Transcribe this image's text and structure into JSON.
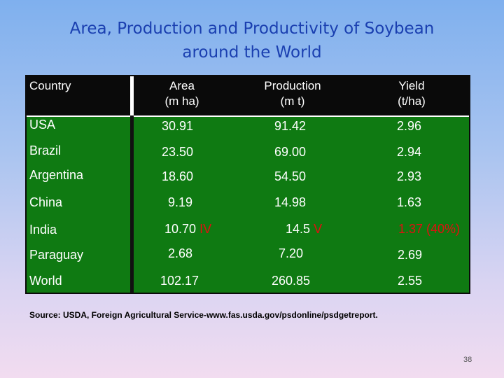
{
  "title": {
    "line1": "Area, Production and Productivity of Soybean",
    "line2": "around the  World"
  },
  "table": {
    "headers": {
      "country": "Country",
      "area_line1": "Area",
      "area_line2": "(m ha)",
      "production_line1": "Production",
      "production_line2": "(m t)",
      "yield_line1": "Yield",
      "yield_line2": "(t/ha)"
    },
    "rows": [
      {
        "country": "USA",
        "area": "30.91",
        "area_mark": "",
        "production": "91.42",
        "production_mark": "",
        "yield": "2.96",
        "yield_mark": ""
      },
      {
        "country": "Brazil",
        "area": "23.50",
        "area_mark": "",
        "production": "69.00",
        "production_mark": "",
        "yield": "2.94",
        "yield_mark": ""
      },
      {
        "country": "Argentina",
        "area": "18.60",
        "area_mark": "",
        "production": "54.50",
        "production_mark": "",
        "yield": "2.93",
        "yield_mark": ""
      },
      {
        "country": "China",
        "area": "9.19",
        "area_mark": "",
        "production": "14.98",
        "production_mark": "",
        "yield": "1.63",
        "yield_mark": ""
      },
      {
        "country": "India",
        "area": "10.70",
        "area_mark": "IV",
        "production": "14.5",
        "production_mark": "V",
        "yield": "",
        "yield_mark": "1.37 (40%)"
      },
      {
        "country": "Paraguay",
        "area": "2.68",
        "area_mark": "",
        "production": "7.20",
        "production_mark": "",
        "yield": "2.69",
        "yield_mark": ""
      },
      {
        "country": "World",
        "area": "102.17",
        "area_mark": "",
        "production": "260.85",
        "production_mark": "",
        "yield": "2.55",
        "yield_mark": ""
      }
    ]
  },
  "source": "Source: USDA, Foreign Agricultural Service-www.fas.usda.gov/psdonline/psdgetreport.",
  "page_number": "38",
  "colors": {
    "title": "#1a3fb0",
    "table_body": "#0f7a12",
    "header_bg": "#0a0a0a",
    "highlight": "#e01010"
  }
}
